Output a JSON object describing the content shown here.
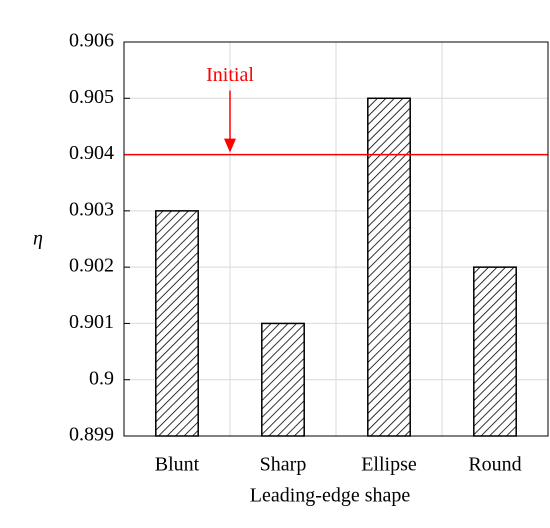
{
  "chart_data": {
    "type": "bar",
    "x_label": "Leading-edge shape",
    "y_label": "η",
    "categories": [
      "Blunt",
      "Sharp",
      "Ellipse",
      "Round"
    ],
    "values": [
      0.903,
      0.901,
      0.905,
      0.902
    ],
    "color": "#000000",
    "ylim": [
      0.899,
      0.906
    ],
    "yticks": [
      0.899,
      0.9,
      0.901,
      0.902,
      0.903,
      0.904,
      0.905,
      0.906
    ],
    "grid": true,
    "reference_lines": [
      {
        "value": 0.904,
        "label": "Initial",
        "color": "#ff0000"
      }
    ]
  }
}
